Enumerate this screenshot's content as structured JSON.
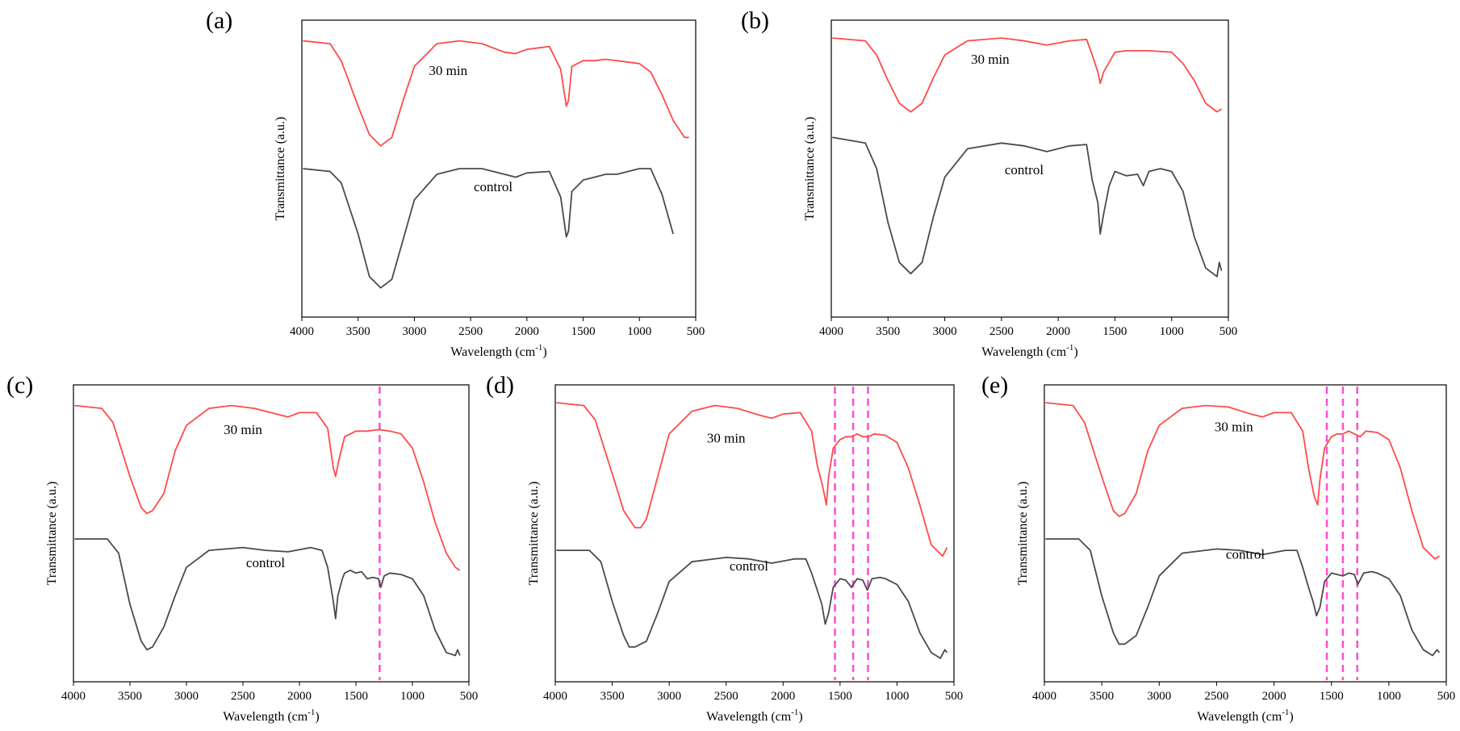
{
  "figure": {
    "description_type": "FTIR spectra panels",
    "colors": {
      "treated": "#ff4a4a",
      "control": "#4a4a4a",
      "marker": "#ff4fd0"
    }
  },
  "chart_data": [
    {
      "type": "line",
      "panel_label": "(a)",
      "xlabel": "Wavelength (cm",
      "xlabel_sup": "-1",
      "xlabel_end": ")",
      "ylabel": "Transmittance (a.u.)",
      "xlim": [
        4000,
        500
      ],
      "xticks": [
        "4000",
        "3500",
        "3000",
        "2500",
        "2000",
        "1500",
        "1000",
        "500"
      ],
      "ylim": [
        0,
        100
      ],
      "markers": [],
      "series": [
        {
          "name": "30 min",
          "label": "30 min",
          "label_x": 2700,
          "label_y": 83,
          "x": [
            3990,
            3750,
            3650,
            3500,
            3400,
            3300,
            3200,
            3100,
            3000,
            2800,
            2600,
            2400,
            2200,
            2100,
            2000,
            1800,
            1700,
            1650,
            1630,
            1600,
            1500,
            1400,
            1300,
            1200,
            1000,
            900,
            800,
            700,
            600,
            560
          ],
          "y": [
            95,
            94,
            88,
            72,
            62,
            58,
            61,
            74,
            86,
            94,
            95,
            94,
            91,
            90.5,
            92,
            93,
            85,
            72,
            74,
            86,
            88,
            88,
            88.5,
            88,
            87,
            84,
            76,
            67,
            61,
            61
          ]
        },
        {
          "name": "control",
          "label": "control",
          "label_x": 2300,
          "label_y": 42,
          "x": [
            3990,
            3750,
            3650,
            3500,
            3400,
            3300,
            3200,
            3100,
            3000,
            2800,
            2600,
            2400,
            2200,
            2100,
            2000,
            1800,
            1700,
            1650,
            1630,
            1600,
            1500,
            1400,
            1300,
            1200,
            1100,
            1000,
            900,
            800,
            700
          ],
          "y": [
            50,
            49,
            45,
            27,
            12,
            8,
            11,
            25,
            39,
            48,
            50,
            50,
            48,
            47,
            48.5,
            49,
            40,
            26,
            28,
            42,
            46,
            47,
            48,
            48,
            49,
            50,
            50,
            41,
            27
          ]
        }
      ]
    },
    {
      "type": "line",
      "panel_label": "(b)",
      "xlabel": "Wavelength (cm",
      "xlabel_sup": "-1",
      "xlabel_end": ")",
      "ylabel": "Transmittance (a.u.)",
      "xlim": [
        4000,
        500
      ],
      "xticks": [
        "4000",
        "3500",
        "3000",
        "2500",
        "2000",
        "1500",
        "1000",
        "500"
      ],
      "ylim": [
        0,
        100
      ],
      "markers": [],
      "series": [
        {
          "name": "30 min",
          "label": "30 min",
          "label_x": 2600,
          "label_y": 87,
          "x": [
            3990,
            3700,
            3600,
            3500,
            3400,
            3300,
            3200,
            3100,
            3000,
            2800,
            2500,
            2300,
            2100,
            1900,
            1750,
            1700,
            1650,
            1630,
            1600,
            1500,
            1400,
            1200,
            1000,
            900,
            800,
            700,
            600,
            560
          ],
          "y": [
            96,
            95,
            90,
            81,
            73,
            70,
            73,
            82,
            90,
            95,
            96,
            95,
            93.5,
            95,
            95.5,
            90,
            84,
            80,
            84,
            91,
            91.5,
            91.5,
            91,
            87,
            81,
            73,
            70,
            71
          ]
        },
        {
          "name": "control",
          "label": "control",
          "label_x": 2300,
          "label_y": 48,
          "x": [
            3990,
            3700,
            3600,
            3500,
            3400,
            3300,
            3200,
            3100,
            3000,
            2800,
            2500,
            2300,
            2100,
            1900,
            1750,
            1700,
            1650,
            1630,
            1600,
            1550,
            1500,
            1400,
            1300,
            1250,
            1200,
            1100,
            1000,
            900,
            800,
            700,
            600,
            580,
            560
          ],
          "y": [
            61,
            59,
            50,
            31,
            17,
            13,
            17,
            33,
            47,
            57,
            59,
            58,
            56,
            58,
            58.5,
            46,
            38,
            27,
            34,
            44,
            49,
            47.5,
            48,
            44,
            49,
            50,
            49,
            42,
            26,
            15,
            12,
            17,
            14
          ]
        }
      ]
    },
    {
      "type": "line",
      "panel_label": "(c)",
      "xlabel": "Wavelength (cm",
      "xlabel_sup": "-1",
      "xlabel_end": ")",
      "ylabel": "Transmittance (a.u.)",
      "xlim": [
        4000,
        500
      ],
      "xticks": [
        "4000",
        "3500",
        "3000",
        "2500",
        "2000",
        "1500",
        "1000",
        "500"
      ],
      "ylim": [
        0,
        100
      ],
      "markers": [
        1290
      ],
      "series": [
        {
          "name": "30 min",
          "label": "30 min",
          "label_x": 2500,
          "label_y": 85,
          "x": [
            3990,
            3750,
            3650,
            3500,
            3400,
            3350,
            3300,
            3200,
            3100,
            3000,
            2800,
            2600,
            2400,
            2200,
            2100,
            2000,
            1850,
            1750,
            1700,
            1680,
            1650,
            1600,
            1500,
            1400,
            1300,
            1200,
            1100,
            1000,
            900,
            800,
            700,
            620,
            580
          ],
          "y": [
            95,
            94,
            89,
            70,
            59,
            57,
            58,
            64,
            79,
            88,
            94,
            95,
            94,
            92,
            91,
            92.5,
            92.5,
            87,
            73,
            70,
            76,
            84,
            86,
            86,
            86.5,
            86,
            85,
            80,
            68,
            54,
            43,
            38,
            37
          ]
        },
        {
          "name": "control",
          "label": "control",
          "label_x": 2300,
          "label_y": 38,
          "x": [
            3990,
            3700,
            3600,
            3500,
            3400,
            3350,
            3300,
            3200,
            3100,
            3000,
            2800,
            2500,
            2300,
            2100,
            1900,
            1800,
            1750,
            1700,
            1680,
            1660,
            1620,
            1600,
            1550,
            1500,
            1450,
            1400,
            1350,
            1300,
            1280,
            1250,
            1200,
            1100,
            1000,
            900,
            800,
            700,
            620,
            600,
            580
          ],
          "y": [
            48,
            48,
            43,
            25,
            12,
            9,
            10,
            17,
            28,
            38,
            44,
            45,
            44,
            43.5,
            45,
            44,
            38,
            26,
            20,
            28,
            34,
            36,
            37,
            36,
            36.5,
            34,
            34.5,
            34,
            31,
            35,
            36,
            35.5,
            34,
            28,
            16,
            8,
            7,
            9,
            7
          ]
        }
      ]
    },
    {
      "type": "line",
      "panel_label": "(d)",
      "xlabel": "Wavelength (cm",
      "xlabel_sup": "-1",
      "xlabel_end": ")",
      "ylabel": "Transmittance (a.u.)",
      "xlim": [
        4000,
        500
      ],
      "xticks": [
        "4000",
        "3500",
        "3000",
        "2500",
        "2000",
        "1500",
        "1000",
        "500"
      ],
      "ylim": [
        0,
        100
      ],
      "markers": [
        1545,
        1385,
        1255
      ],
      "series": [
        {
          "name": "30 min",
          "label": "30 min",
          "label_x": 2500,
          "label_y": 82,
          "x": [
            3990,
            3750,
            3650,
            3500,
            3400,
            3300,
            3250,
            3200,
            3100,
            3000,
            2800,
            2600,
            2400,
            2200,
            2100,
            2000,
            1850,
            1750,
            1700,
            1650,
            1620,
            1600,
            1560,
            1500,
            1450,
            1400,
            1350,
            1300,
            1250,
            1200,
            1100,
            1000,
            900,
            800,
            700,
            600,
            560
          ],
          "y": [
            96,
            95,
            90,
            71,
            58,
            52,
            52,
            55,
            70,
            85,
            93,
            95,
            94,
            91.5,
            90.5,
            92,
            92.5,
            86,
            74,
            66,
            60,
            70,
            80,
            83,
            84,
            84,
            85,
            84,
            84,
            85,
            84.5,
            82,
            73,
            60,
            46,
            42,
            45
          ]
        },
        {
          "name": "control",
          "label": "control",
          "label_x": 2300,
          "label_y": 37,
          "x": [
            3990,
            3700,
            3600,
            3500,
            3400,
            3350,
            3300,
            3200,
            3100,
            3000,
            2800,
            2500,
            2300,
            2100,
            1900,
            1800,
            1750,
            1700,
            1660,
            1630,
            1600,
            1560,
            1500,
            1450,
            1400,
            1350,
            1300,
            1260,
            1220,
            1150,
            1100,
            1000,
            900,
            800,
            700,
            620,
            580,
            560
          ],
          "y": [
            44,
            44,
            40,
            26,
            14,
            10,
            10,
            12,
            22,
            33,
            40,
            41.5,
            41,
            39.5,
            41,
            41,
            36,
            30,
            25,
            18,
            22,
            31,
            34,
            33.5,
            31,
            34,
            33.5,
            30,
            34,
            34.5,
            34,
            32,
            26,
            15,
            8,
            6,
            9,
            8
          ]
        }
      ]
    },
    {
      "type": "line",
      "panel_label": "(e)",
      "xlabel": "Wavelength (cm",
      "xlabel_sup": "-1",
      "xlabel_end": ")",
      "ylabel": "Transmittance (a.u.)",
      "xlim": [
        4000,
        500
      ],
      "xticks": [
        "4000",
        "3500",
        "3000",
        "2500",
        "2000",
        "1500",
        "1000",
        "500"
      ],
      "ylim": [
        0,
        100
      ],
      "markers": [
        1540,
        1400,
        1275
      ],
      "series": [
        {
          "name": "30 min",
          "label": "30 min",
          "label_x": 2350,
          "label_y": 86,
          "x": [
            3990,
            3750,
            3650,
            3500,
            3400,
            3350,
            3300,
            3200,
            3100,
            3000,
            2800,
            2600,
            2400,
            2200,
            2100,
            2000,
            1850,
            1750,
            1700,
            1650,
            1620,
            1600,
            1560,
            1500,
            1450,
            1400,
            1350,
            1300,
            1250,
            1200,
            1100,
            1000,
            900,
            800,
            700,
            600,
            560
          ],
          "y": [
            96,
            95,
            89,
            70,
            58,
            56,
            57,
            64,
            79,
            88,
            94,
            95,
            94.5,
            92,
            91,
            92.5,
            92.5,
            86,
            73,
            63,
            60,
            69,
            80,
            84,
            85,
            85,
            86,
            85,
            84,
            86,
            85.5,
            83,
            73,
            58,
            45,
            41,
            42
          ]
        },
        {
          "name": "control",
          "label": "control",
          "label_x": 2250,
          "label_y": 41,
          "x": [
            3990,
            3700,
            3600,
            3500,
            3400,
            3350,
            3300,
            3200,
            3100,
            3000,
            2800,
            2500,
            2300,
            2100,
            1900,
            1800,
            1750,
            1700,
            1660,
            1630,
            1600,
            1560,
            1500,
            1450,
            1400,
            1350,
            1300,
            1270,
            1220,
            1150,
            1100,
            1000,
            900,
            800,
            700,
            620,
            580,
            560
          ],
          "y": [
            48,
            48,
            44,
            28,
            15,
            11,
            11,
            14,
            24,
            35,
            43,
            44.5,
            44,
            42.5,
            44,
            44,
            38,
            31,
            26,
            21,
            24,
            33,
            36,
            35.5,
            35,
            36,
            35.5,
            32,
            36,
            36.5,
            36,
            34,
            28,
            16,
            9,
            7,
            9,
            8
          ]
        }
      ]
    }
  ]
}
